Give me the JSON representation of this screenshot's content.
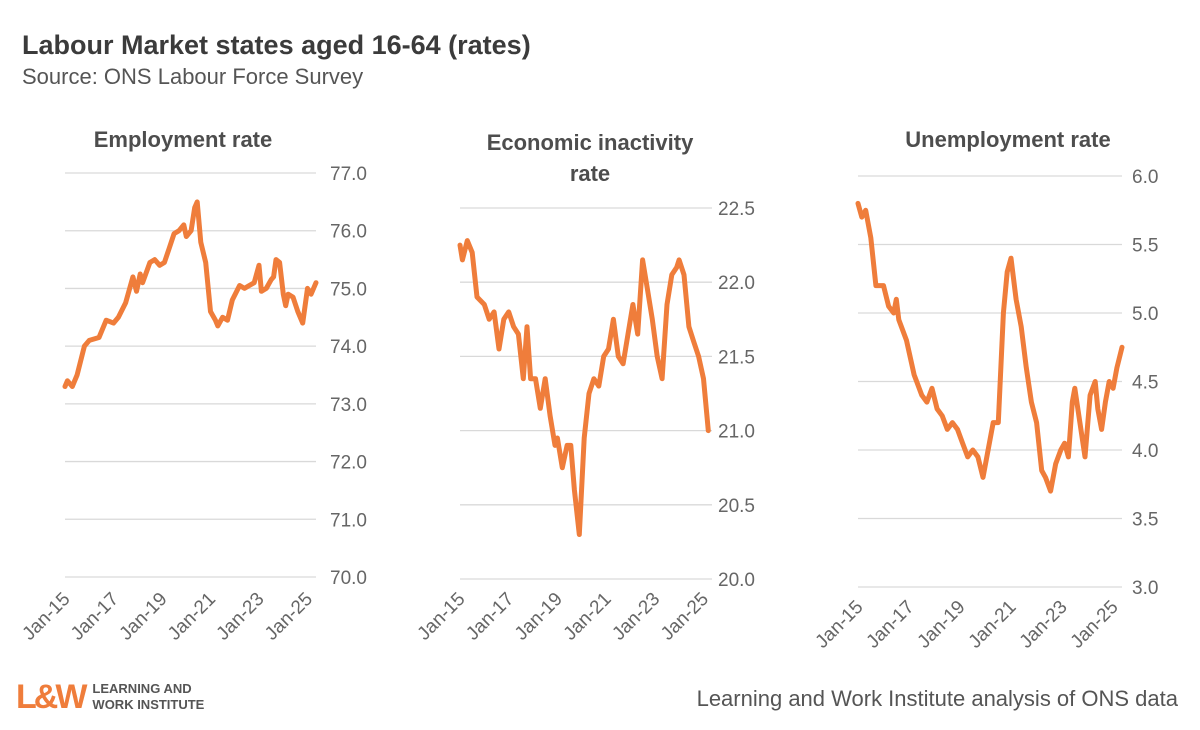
{
  "header": {
    "title": "Labour Market states aged 16-64 (rates)",
    "subtitle": "Source: ONS Labour Force Survey"
  },
  "footer": {
    "credit": "Learning and Work Institute analysis of ONS data",
    "logo_mark": "L&W",
    "logo_line1": "LEARNING AND",
    "logo_line2": "WORK INSTITUTE"
  },
  "colors": {
    "line": "#ef7d3b",
    "grid": "#d9d9d9"
  },
  "chart_data": [
    {
      "type": "line",
      "title": [
        "Employment rate"
      ],
      "ylim": [
        70,
        77
      ],
      "yticks": [
        "70.0",
        "71.0",
        "72.0",
        "73.0",
        "74.0",
        "75.0",
        "76.0",
        "77.0"
      ],
      "xticks": [
        "Jan-15",
        "Jan-17",
        "Jan-19",
        "Jan-21",
        "Jan-23",
        "Jan-25"
      ],
      "xtick_years": [
        2015,
        2017,
        2019,
        2021,
        2023,
        2025
      ],
      "ylabel_side": "right",
      "grid": true,
      "series": [
        {
          "name": "Employment rate",
          "points": [
            [
              2015.0,
              73.3
            ],
            [
              2015.1,
              73.4
            ],
            [
              2015.3,
              73.3
            ],
            [
              2015.5,
              73.5
            ],
            [
              2015.8,
              74.0
            ],
            [
              2016.0,
              74.1
            ],
            [
              2016.4,
              74.15
            ],
            [
              2016.7,
              74.45
            ],
            [
              2017.0,
              74.4
            ],
            [
              2017.2,
              74.5
            ],
            [
              2017.5,
              74.75
            ],
            [
              2017.8,
              75.2
            ],
            [
              2017.95,
              74.95
            ],
            [
              2018.1,
              75.25
            ],
            [
              2018.2,
              75.1
            ],
            [
              2018.5,
              75.45
            ],
            [
              2018.7,
              75.5
            ],
            [
              2018.9,
              75.4
            ],
            [
              2019.1,
              75.45
            ],
            [
              2019.3,
              75.7
            ],
            [
              2019.5,
              75.95
            ],
            [
              2019.7,
              76.0
            ],
            [
              2019.9,
              76.1
            ],
            [
              2020.0,
              75.9
            ],
            [
              2020.2,
              76.0
            ],
            [
              2020.35,
              76.4
            ],
            [
              2020.45,
              76.5
            ],
            [
              2020.6,
              75.8
            ],
            [
              2020.8,
              75.45
            ],
            [
              2021.0,
              74.6
            ],
            [
              2021.2,
              74.45
            ],
            [
              2021.3,
              74.35
            ],
            [
              2021.5,
              74.5
            ],
            [
              2021.7,
              74.45
            ],
            [
              2021.9,
              74.8
            ],
            [
              2022.2,
              75.05
            ],
            [
              2022.4,
              75.0
            ],
            [
              2022.6,
              75.05
            ],
            [
              2022.8,
              75.1
            ],
            [
              2023.0,
              75.4
            ],
            [
              2023.1,
              74.95
            ],
            [
              2023.3,
              75.0
            ],
            [
              2023.5,
              75.15
            ],
            [
              2023.6,
              75.2
            ],
            [
              2023.7,
              75.5
            ],
            [
              2023.85,
              75.45
            ],
            [
              2024.0,
              74.9
            ],
            [
              2024.1,
              74.7
            ],
            [
              2024.2,
              74.9
            ],
            [
              2024.4,
              74.85
            ],
            [
              2024.6,
              74.6
            ],
            [
              2024.8,
              74.4
            ],
            [
              2025.0,
              75.0
            ],
            [
              2025.15,
              74.9
            ],
            [
              2025.35,
              75.1
            ]
          ]
        }
      ]
    },
    {
      "type": "line",
      "title": [
        "Economic inactivity",
        "rate"
      ],
      "ylim": [
        20,
        22.5
      ],
      "yticks": [
        "20.0",
        "20.5",
        "21.0",
        "21.5",
        "22.0",
        "22.5"
      ],
      "xticks": [
        "Jan-15",
        "Jan-17",
        "Jan-19",
        "Jan-21",
        "Jan-23",
        "Jan-25"
      ],
      "xtick_years": [
        2015,
        2017,
        2019,
        2021,
        2023,
        2025
      ],
      "ylabel_side": "right",
      "grid": true,
      "series": [
        {
          "name": "Economic inactivity rate",
          "points": [
            [
              2015.0,
              22.25
            ],
            [
              2015.1,
              22.15
            ],
            [
              2015.3,
              22.28
            ],
            [
              2015.5,
              22.2
            ],
            [
              2015.7,
              21.9
            ],
            [
              2016.0,
              21.85
            ],
            [
              2016.2,
              21.75
            ],
            [
              2016.4,
              21.8
            ],
            [
              2016.6,
              21.55
            ],
            [
              2016.8,
              21.75
            ],
            [
              2017.0,
              21.8
            ],
            [
              2017.2,
              21.7
            ],
            [
              2017.4,
              21.65
            ],
            [
              2017.6,
              21.35
            ],
            [
              2017.75,
              21.7
            ],
            [
              2017.9,
              21.35
            ],
            [
              2018.1,
              21.35
            ],
            [
              2018.3,
              21.15
            ],
            [
              2018.5,
              21.35
            ],
            [
              2018.7,
              21.1
            ],
            [
              2018.9,
              20.9
            ],
            [
              2019.0,
              20.95
            ],
            [
              2019.2,
              20.75
            ],
            [
              2019.4,
              20.9
            ],
            [
              2019.55,
              20.9
            ],
            [
              2019.7,
              20.6
            ],
            [
              2019.9,
              20.3
            ],
            [
              2020.1,
              20.95
            ],
            [
              2020.3,
              21.25
            ],
            [
              2020.5,
              21.35
            ],
            [
              2020.7,
              21.3
            ],
            [
              2020.9,
              21.5
            ],
            [
              2021.1,
              21.55
            ],
            [
              2021.3,
              21.75
            ],
            [
              2021.5,
              21.5
            ],
            [
              2021.7,
              21.45
            ],
            [
              2021.9,
              21.65
            ],
            [
              2022.1,
              21.85
            ],
            [
              2022.3,
              21.65
            ],
            [
              2022.5,
              22.15
            ],
            [
              2022.7,
              21.95
            ],
            [
              2022.9,
              21.75
            ],
            [
              2023.1,
              21.5
            ],
            [
              2023.3,
              21.35
            ],
            [
              2023.5,
              21.85
            ],
            [
              2023.7,
              22.05
            ],
            [
              2023.9,
              22.1
            ],
            [
              2024.0,
              22.15
            ],
            [
              2024.2,
              22.05
            ],
            [
              2024.4,
              21.7
            ],
            [
              2024.6,
              21.6
            ],
            [
              2024.8,
              21.5
            ],
            [
              2025.0,
              21.35
            ],
            [
              2025.2,
              21.0
            ]
          ]
        }
      ]
    },
    {
      "type": "line",
      "title": [
        "Unemployment rate"
      ],
      "ylim": [
        3,
        6
      ],
      "yticks": [
        "3.0",
        "3.5",
        "4.0",
        "4.5",
        "5.0",
        "5.5",
        "6.0"
      ],
      "xticks": [
        "Jan-15",
        "Jan-17",
        "Jan-19",
        "Jan-21",
        "Jan-23",
        "Jan-25"
      ],
      "xtick_years": [
        2015,
        2017,
        2019,
        2021,
        2023,
        2025
      ],
      "ylabel_side": "right",
      "grid": true,
      "series": [
        {
          "name": "Unemployment rate",
          "points": [
            [
              2015.0,
              5.8
            ],
            [
              2015.15,
              5.7
            ],
            [
              2015.3,
              5.75
            ],
            [
              2015.5,
              5.55
            ],
            [
              2015.7,
              5.2
            ],
            [
              2016.0,
              5.2
            ],
            [
              2016.2,
              5.05
            ],
            [
              2016.4,
              5.0
            ],
            [
              2016.5,
              5.1
            ],
            [
              2016.6,
              4.95
            ],
            [
              2016.9,
              4.8
            ],
            [
              2017.2,
              4.55
            ],
            [
              2017.5,
              4.4
            ],
            [
              2017.7,
              4.35
            ],
            [
              2017.9,
              4.45
            ],
            [
              2018.1,
              4.3
            ],
            [
              2018.3,
              4.25
            ],
            [
              2018.5,
              4.15
            ],
            [
              2018.7,
              4.2
            ],
            [
              2018.9,
              4.15
            ],
            [
              2019.1,
              4.05
            ],
            [
              2019.3,
              3.95
            ],
            [
              2019.5,
              4.0
            ],
            [
              2019.7,
              3.95
            ],
            [
              2019.9,
              3.8
            ],
            [
              2020.1,
              4.0
            ],
            [
              2020.3,
              4.2
            ],
            [
              2020.5,
              4.2
            ],
            [
              2020.7,
              5.0
            ],
            [
              2020.85,
              5.3
            ],
            [
              2021.0,
              5.4
            ],
            [
              2021.2,
              5.1
            ],
            [
              2021.4,
              4.9
            ],
            [
              2021.6,
              4.6
            ],
            [
              2021.8,
              4.35
            ],
            [
              2022.0,
              4.2
            ],
            [
              2022.2,
              3.85
            ],
            [
              2022.35,
              3.8
            ],
            [
              2022.55,
              3.7
            ],
            [
              2022.75,
              3.9
            ],
            [
              2022.95,
              4.0
            ],
            [
              2023.1,
              4.05
            ],
            [
              2023.25,
              3.95
            ],
            [
              2023.4,
              4.35
            ],
            [
              2023.5,
              4.45
            ],
            [
              2023.7,
              4.2
            ],
            [
              2023.9,
              3.95
            ],
            [
              2024.1,
              4.4
            ],
            [
              2024.3,
              4.5
            ],
            [
              2024.4,
              4.3
            ],
            [
              2024.55,
              4.15
            ],
            [
              2024.7,
              4.35
            ],
            [
              2024.85,
              4.5
            ],
            [
              2025.0,
              4.45
            ],
            [
              2025.15,
              4.6
            ],
            [
              2025.35,
              4.75
            ]
          ]
        }
      ]
    }
  ]
}
